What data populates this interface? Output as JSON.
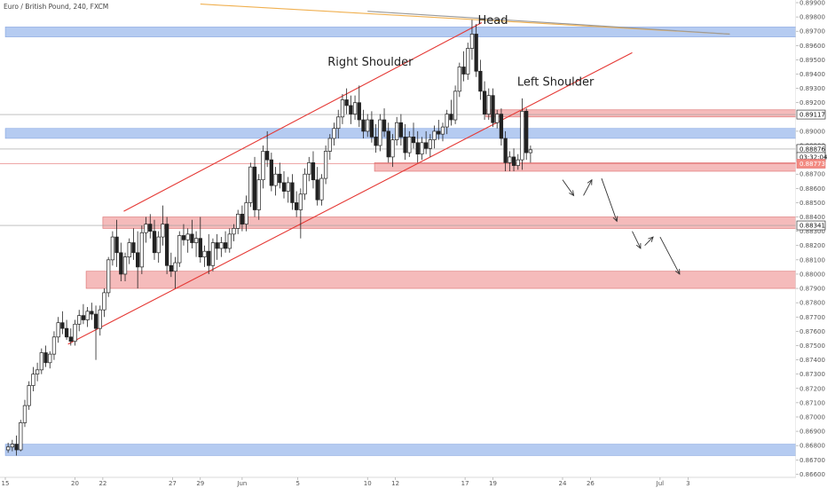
{
  "chart_data": {
    "type": "candlestick",
    "title": "Euro / British Pound, 240, FXCM",
    "y_axis_ticks": [
      "0.89900",
      "0.89800",
      "0.89700",
      "0.89600",
      "0.89500",
      "0.89400",
      "0.89300",
      "0.89200",
      "0.89000",
      "0.88900",
      "0.88700",
      "0.88600",
      "0.88500",
      "0.88400",
      "0.88300",
      "0.88200",
      "0.88100",
      "0.88000",
      "0.87900",
      "0.87800",
      "0.87700",
      "0.87600",
      "0.87500",
      "0.87400",
      "0.87300",
      "0.87200",
      "0.87100",
      "0.87000",
      "0.86900",
      "0.86800",
      "0.86700",
      "0.86600"
    ],
    "ylim": [
      0.8659,
      0.899
    ],
    "x_ticks": [
      {
        "label": "15",
        "day": 0
      },
      {
        "label": "20",
        "day": 5
      },
      {
        "label": "22",
        "day": 7
      },
      {
        "label": "27",
        "day": 12
      },
      {
        "label": "29",
        "day": 14
      },
      {
        "label": "Jun",
        "day": 17
      },
      {
        "label": "5",
        "day": 21
      },
      {
        "label": "10",
        "day": 26
      },
      {
        "label": "12",
        "day": 28
      },
      {
        "label": "17",
        "day": 33
      },
      {
        "label": "19",
        "day": 35
      },
      {
        "label": "24",
        "day": 40
      },
      {
        "label": "26",
        "day": 42
      },
      {
        "label": "Jul",
        "day": 47
      },
      {
        "label": "3",
        "day": 49
      }
    ],
    "price_badges": [
      {
        "label": "0.89117",
        "value": 0.89117,
        "style": "outline"
      },
      {
        "label": "0.88876",
        "value": 0.88876,
        "style": "outline"
      },
      {
        "label": "03:32:04",
        "value": 0.8882,
        "style": "outline"
      },
      {
        "label": "0.88773",
        "value": 0.88773,
        "style": "red"
      },
      {
        "label": "0.88341",
        "value": 0.88341,
        "style": "outline"
      }
    ],
    "zones": [
      {
        "kind": "blue",
        "from_day": 0,
        "y_low": 0.8895,
        "y_high": 0.8902
      },
      {
        "kind": "blue",
        "from_day": 0,
        "y_low": 0.8966,
        "y_high": 0.8973
      },
      {
        "kind": "red",
        "from_day": 34.5,
        "y_low": 0.891,
        "y_high": 0.8915
      },
      {
        "kind": "red",
        "from_day": 26.5,
        "y_low": 0.8872,
        "y_high": 0.8878
      },
      {
        "kind": "red",
        "from_day": 7,
        "y_low": 0.8832,
        "y_high": 0.884
      },
      {
        "kind": "red",
        "from_day": 5.8,
        "y_low": 0.879,
        "y_high": 0.8802
      },
      {
        "kind": "blue",
        "from_day": 0,
        "y_low": 0.8673,
        "y_high": 0.8681
      }
    ],
    "trendlines": [
      {
        "color": "#e53935",
        "from": [
          8.5,
          0.8844
        ],
        "to": [
          34.2,
          0.8976
        ]
      },
      {
        "color": "#e53935",
        "from": [
          4.5,
          0.8751
        ],
        "to": [
          45,
          0.8955
        ]
      },
      {
        "color": "#f0b050",
        "from": [
          14,
          0.8989
        ],
        "to": [
          52,
          0.8968
        ]
      },
      {
        "color": "#999999",
        "from": [
          26,
          0.8984
        ],
        "to": [
          52,
          0.8968
        ]
      }
    ],
    "annotations": [
      {
        "text": "Head",
        "day": 35,
        "value": 0.8975
      },
      {
        "text": "Right Shoulder",
        "day": 26.2,
        "value": 0.8946
      },
      {
        "text": "Left Shoulder",
        "day": 39.5,
        "value": 0.8932
      }
    ],
    "projection_arrows": [
      {
        "from": [
          40,
          0.8866
        ],
        "to": [
          40.8,
          0.8855
        ]
      },
      {
        "from": [
          41.5,
          0.8855
        ],
        "to": [
          42.1,
          0.8866
        ]
      },
      {
        "from": [
          42.8,
          0.8867
        ],
        "to": [
          43.9,
          0.8837
        ]
      },
      {
        "from": [
          45,
          0.883
        ],
        "to": [
          45.6,
          0.8818
        ]
      },
      {
        "from": [
          45.9,
          0.882
        ],
        "to": [
          46.5,
          0.8826
        ]
      },
      {
        "from": [
          47,
          0.8826
        ],
        "to": [
          48.4,
          0.88
        ]
      }
    ],
    "candles": [
      {
        "t": 0.2,
        "o": 0.8677,
        "h": 0.8682,
        "l": 0.8675,
        "c": 0.8679
      },
      {
        "t": 0.5,
        "o": 0.8679,
        "h": 0.8684,
        "l": 0.8676,
        "c": 0.8681
      },
      {
        "t": 0.8,
        "o": 0.8681,
        "h": 0.8687,
        "l": 0.8673,
        "c": 0.8677
      },
      {
        "t": 1.1,
        "o": 0.8677,
        "h": 0.8698,
        "l": 0.8676,
        "c": 0.8696
      },
      {
        "t": 1.4,
        "o": 0.8696,
        "h": 0.8712,
        "l": 0.8693,
        "c": 0.8708
      },
      {
        "t": 1.7,
        "o": 0.8708,
        "h": 0.8725,
        "l": 0.8705,
        "c": 0.8722
      },
      {
        "t": 2.0,
        "o": 0.8722,
        "h": 0.8735,
        "l": 0.8718,
        "c": 0.873
      },
      {
        "t": 2.3,
        "o": 0.873,
        "h": 0.8738,
        "l": 0.8725,
        "c": 0.8733
      },
      {
        "t": 2.6,
        "o": 0.8733,
        "h": 0.8748,
        "l": 0.873,
        "c": 0.8745
      },
      {
        "t": 2.9,
        "o": 0.8745,
        "h": 0.875,
        "l": 0.8735,
        "c": 0.8738
      },
      {
        "t": 3.2,
        "o": 0.8738,
        "h": 0.8746,
        "l": 0.8734,
        "c": 0.8744
      },
      {
        "t": 3.5,
        "o": 0.8744,
        "h": 0.876,
        "l": 0.874,
        "c": 0.8756
      },
      {
        "t": 3.8,
        "o": 0.8756,
        "h": 0.877,
        "l": 0.8752,
        "c": 0.8766
      },
      {
        "t": 4.1,
        "o": 0.8766,
        "h": 0.8774,
        "l": 0.8758,
        "c": 0.8762
      },
      {
        "t": 4.4,
        "o": 0.8762,
        "h": 0.8768,
        "l": 0.8754,
        "c": 0.8756
      },
      {
        "t": 4.7,
        "o": 0.8756,
        "h": 0.8762,
        "l": 0.875,
        "c": 0.8753
      },
      {
        "t": 5.0,
        "o": 0.8753,
        "h": 0.8768,
        "l": 0.875,
        "c": 0.8765
      },
      {
        "t": 5.3,
        "o": 0.8765,
        "h": 0.8775,
        "l": 0.876,
        "c": 0.8771
      },
      {
        "t": 5.6,
        "o": 0.8771,
        "h": 0.8779,
        "l": 0.8765,
        "c": 0.8768
      },
      {
        "t": 5.9,
        "o": 0.8768,
        "h": 0.8777,
        "l": 0.8763,
        "c": 0.8774
      },
      {
        "t": 6.2,
        "o": 0.8774,
        "h": 0.878,
        "l": 0.8768,
        "c": 0.8772
      },
      {
        "t": 6.5,
        "o": 0.8772,
        "h": 0.8778,
        "l": 0.874,
        "c": 0.8762
      },
      {
        "t": 6.8,
        "o": 0.8762,
        "h": 0.8778,
        "l": 0.8757,
        "c": 0.8775
      },
      {
        "t": 7.1,
        "o": 0.8775,
        "h": 0.879,
        "l": 0.877,
        "c": 0.8787
      },
      {
        "t": 7.4,
        "o": 0.8787,
        "h": 0.8812,
        "l": 0.8784,
        "c": 0.881
      },
      {
        "t": 7.7,
        "o": 0.881,
        "h": 0.883,
        "l": 0.8806,
        "c": 0.8826
      },
      {
        "t": 8.0,
        "o": 0.8826,
        "h": 0.8838,
        "l": 0.8805,
        "c": 0.8815
      },
      {
        "t": 8.3,
        "o": 0.8815,
        "h": 0.8822,
        "l": 0.8795,
        "c": 0.88
      },
      {
        "t": 8.6,
        "o": 0.88,
        "h": 0.8815,
        "l": 0.8795,
        "c": 0.8812
      },
      {
        "t": 8.9,
        "o": 0.8812,
        "h": 0.8825,
        "l": 0.8807,
        "c": 0.8822
      },
      {
        "t": 9.2,
        "o": 0.8822,
        "h": 0.8832,
        "l": 0.881,
        "c": 0.8815
      },
      {
        "t": 9.5,
        "o": 0.8815,
        "h": 0.883,
        "l": 0.879,
        "c": 0.8805
      },
      {
        "t": 9.8,
        "o": 0.8805,
        "h": 0.8834,
        "l": 0.88,
        "c": 0.8829
      },
      {
        "t": 10.1,
        "o": 0.8829,
        "h": 0.884,
        "l": 0.8822,
        "c": 0.8835
      },
      {
        "t": 10.4,
        "o": 0.8835,
        "h": 0.8842,
        "l": 0.8825,
        "c": 0.883
      },
      {
        "t": 10.7,
        "o": 0.883,
        "h": 0.8838,
        "l": 0.881,
        "c": 0.8815
      },
      {
        "t": 11.0,
        "o": 0.8815,
        "h": 0.883,
        "l": 0.8808,
        "c": 0.8826
      },
      {
        "t": 11.3,
        "o": 0.8826,
        "h": 0.8848,
        "l": 0.882,
        "c": 0.8835
      },
      {
        "t": 11.6,
        "o": 0.8835,
        "h": 0.884,
        "l": 0.88,
        "c": 0.8806
      },
      {
        "t": 11.9,
        "o": 0.8806,
        "h": 0.8815,
        "l": 0.8798,
        "c": 0.8802
      },
      {
        "t": 12.2,
        "o": 0.8802,
        "h": 0.8812,
        "l": 0.879,
        "c": 0.8808
      },
      {
        "t": 12.5,
        "o": 0.8808,
        "h": 0.883,
        "l": 0.8805,
        "c": 0.8827
      },
      {
        "t": 12.8,
        "o": 0.8827,
        "h": 0.8835,
        "l": 0.882,
        "c": 0.8824
      },
      {
        "t": 13.1,
        "o": 0.8824,
        "h": 0.8832,
        "l": 0.8815,
        "c": 0.8828
      },
      {
        "t": 13.4,
        "o": 0.8828,
        "h": 0.8838,
        "l": 0.8818,
        "c": 0.8822
      },
      {
        "t": 13.7,
        "o": 0.8822,
        "h": 0.883,
        "l": 0.8812,
        "c": 0.8825
      },
      {
        "t": 14.0,
        "o": 0.8825,
        "h": 0.884,
        "l": 0.8808,
        "c": 0.8812
      },
      {
        "t": 14.3,
        "o": 0.8812,
        "h": 0.882,
        "l": 0.8805,
        "c": 0.8816
      },
      {
        "t": 14.6,
        "o": 0.8816,
        "h": 0.8828,
        "l": 0.88,
        "c": 0.8806
      },
      {
        "t": 14.9,
        "o": 0.8806,
        "h": 0.8825,
        "l": 0.8802,
        "c": 0.8822
      },
      {
        "t": 15.2,
        "o": 0.8822,
        "h": 0.8828,
        "l": 0.881,
        "c": 0.8818
      },
      {
        "t": 15.5,
        "o": 0.8818,
        "h": 0.8826,
        "l": 0.8812,
        "c": 0.8822
      },
      {
        "t": 15.8,
        "o": 0.8822,
        "h": 0.883,
        "l": 0.8815,
        "c": 0.8818
      },
      {
        "t": 16.1,
        "o": 0.8818,
        "h": 0.8832,
        "l": 0.8815,
        "c": 0.8828
      },
      {
        "t": 16.4,
        "o": 0.8828,
        "h": 0.8835,
        "l": 0.8823,
        "c": 0.8832
      },
      {
        "t": 16.7,
        "o": 0.8832,
        "h": 0.8845,
        "l": 0.8828,
        "c": 0.8842
      },
      {
        "t": 17.0,
        "o": 0.8842,
        "h": 0.8848,
        "l": 0.883,
        "c": 0.8835
      },
      {
        "t": 17.3,
        "o": 0.8835,
        "h": 0.8855,
        "l": 0.883,
        "c": 0.885
      },
      {
        "t": 17.6,
        "o": 0.885,
        "h": 0.8878,
        "l": 0.8847,
        "c": 0.8875
      },
      {
        "t": 17.9,
        "o": 0.8875,
        "h": 0.8882,
        "l": 0.884,
        "c": 0.8845
      },
      {
        "t": 18.2,
        "o": 0.8845,
        "h": 0.887,
        "l": 0.8838,
        "c": 0.8866
      },
      {
        "t": 18.5,
        "o": 0.8866,
        "h": 0.889,
        "l": 0.886,
        "c": 0.8886
      },
      {
        "t": 18.8,
        "o": 0.8886,
        "h": 0.89,
        "l": 0.8875,
        "c": 0.888
      },
      {
        "t": 19.1,
        "o": 0.888,
        "h": 0.8885,
        "l": 0.8858,
        "c": 0.8862
      },
      {
        "t": 19.4,
        "o": 0.8862,
        "h": 0.8875,
        "l": 0.8855,
        "c": 0.887
      },
      {
        "t": 19.7,
        "o": 0.887,
        "h": 0.8878,
        "l": 0.886,
        "c": 0.8864
      },
      {
        "t": 20.0,
        "o": 0.8864,
        "h": 0.8872,
        "l": 0.8853,
        "c": 0.8858
      },
      {
        "t": 20.3,
        "o": 0.8858,
        "h": 0.8868,
        "l": 0.885,
        "c": 0.8864
      },
      {
        "t": 20.6,
        "o": 0.8864,
        "h": 0.887,
        "l": 0.8845,
        "c": 0.885
      },
      {
        "t": 20.9,
        "o": 0.885,
        "h": 0.8858,
        "l": 0.884,
        "c": 0.8845
      },
      {
        "t": 21.2,
        "o": 0.8845,
        "h": 0.886,
        "l": 0.8825,
        "c": 0.8856
      },
      {
        "t": 21.5,
        "o": 0.8856,
        "h": 0.8874,
        "l": 0.8852,
        "c": 0.887
      },
      {
        "t": 21.8,
        "o": 0.887,
        "h": 0.8882,
        "l": 0.8865,
        "c": 0.8878
      },
      {
        "t": 22.1,
        "o": 0.8878,
        "h": 0.8886,
        "l": 0.886,
        "c": 0.8866
      },
      {
        "t": 22.4,
        "o": 0.8866,
        "h": 0.8875,
        "l": 0.8848,
        "c": 0.8852
      },
      {
        "t": 22.7,
        "o": 0.8852,
        "h": 0.887,
        "l": 0.8848,
        "c": 0.8867
      },
      {
        "t": 23.0,
        "o": 0.8867,
        "h": 0.889,
        "l": 0.8863,
        "c": 0.8886
      },
      {
        "t": 23.3,
        "o": 0.8886,
        "h": 0.8898,
        "l": 0.888,
        "c": 0.8895
      },
      {
        "t": 23.6,
        "o": 0.8895,
        "h": 0.8906,
        "l": 0.889,
        "c": 0.8902
      },
      {
        "t": 23.9,
        "o": 0.8902,
        "h": 0.8915,
        "l": 0.8895,
        "c": 0.891
      },
      {
        "t": 24.2,
        "o": 0.891,
        "h": 0.8926,
        "l": 0.8905,
        "c": 0.8922
      },
      {
        "t": 24.5,
        "o": 0.8922,
        "h": 0.893,
        "l": 0.8912,
        "c": 0.8918
      },
      {
        "t": 24.8,
        "o": 0.8918,
        "h": 0.8925,
        "l": 0.8905,
        "c": 0.8912
      },
      {
        "t": 25.1,
        "o": 0.8912,
        "h": 0.8925,
        "l": 0.8908,
        "c": 0.892
      },
      {
        "t": 25.4,
        "o": 0.892,
        "h": 0.8932,
        "l": 0.8903,
        "c": 0.8908
      },
      {
        "t": 25.7,
        "o": 0.8908,
        "h": 0.8915,
        "l": 0.8895,
        "c": 0.89
      },
      {
        "t": 26.0,
        "o": 0.89,
        "h": 0.8912,
        "l": 0.8896,
        "c": 0.8908
      },
      {
        "t": 26.3,
        "o": 0.8908,
        "h": 0.8914,
        "l": 0.8892,
        "c": 0.8896
      },
      {
        "t": 26.6,
        "o": 0.8896,
        "h": 0.8905,
        "l": 0.8885,
        "c": 0.889
      },
      {
        "t": 26.9,
        "o": 0.889,
        "h": 0.8912,
        "l": 0.8886,
        "c": 0.8908
      },
      {
        "t": 27.2,
        "o": 0.8908,
        "h": 0.8916,
        "l": 0.8896,
        "c": 0.89
      },
      {
        "t": 27.5,
        "o": 0.89,
        "h": 0.8906,
        "l": 0.8878,
        "c": 0.8882
      },
      {
        "t": 27.8,
        "o": 0.8882,
        "h": 0.8898,
        "l": 0.8875,
        "c": 0.8894
      },
      {
        "t": 28.1,
        "o": 0.8894,
        "h": 0.891,
        "l": 0.889,
        "c": 0.8906
      },
      {
        "t": 28.4,
        "o": 0.8906,
        "h": 0.8912,
        "l": 0.889,
        "c": 0.8896
      },
      {
        "t": 28.7,
        "o": 0.8896,
        "h": 0.8905,
        "l": 0.888,
        "c": 0.8885
      },
      {
        "t": 29.0,
        "o": 0.8885,
        "h": 0.89,
        "l": 0.8882,
        "c": 0.8896
      },
      {
        "t": 29.3,
        "o": 0.8896,
        "h": 0.8906,
        "l": 0.8888,
        "c": 0.8892
      },
      {
        "t": 29.6,
        "o": 0.8892,
        "h": 0.89,
        "l": 0.8878,
        "c": 0.8884
      },
      {
        "t": 29.9,
        "o": 0.8884,
        "h": 0.8896,
        "l": 0.888,
        "c": 0.8892
      },
      {
        "t": 30.2,
        "o": 0.8892,
        "h": 0.89,
        "l": 0.8884,
        "c": 0.8888
      },
      {
        "t": 30.5,
        "o": 0.8888,
        "h": 0.8898,
        "l": 0.8882,
        "c": 0.8894
      },
      {
        "t": 30.8,
        "o": 0.8894,
        "h": 0.8904,
        "l": 0.8888,
        "c": 0.89
      },
      {
        "t": 31.1,
        "o": 0.89,
        "h": 0.8908,
        "l": 0.8894,
        "c": 0.8898
      },
      {
        "t": 31.4,
        "o": 0.8898,
        "h": 0.8906,
        "l": 0.8893,
        "c": 0.8903
      },
      {
        "t": 31.7,
        "o": 0.8903,
        "h": 0.8915,
        "l": 0.8898,
        "c": 0.8912
      },
      {
        "t": 32.0,
        "o": 0.8912,
        "h": 0.8922,
        "l": 0.8904,
        "c": 0.8908
      },
      {
        "t": 32.3,
        "o": 0.8908,
        "h": 0.8932,
        "l": 0.8905,
        "c": 0.8928
      },
      {
        "t": 32.6,
        "o": 0.8928,
        "h": 0.8948,
        "l": 0.8924,
        "c": 0.8945
      },
      {
        "t": 32.9,
        "o": 0.8945,
        "h": 0.8956,
        "l": 0.8935,
        "c": 0.894
      },
      {
        "t": 33.2,
        "o": 0.894,
        "h": 0.8962,
        "l": 0.8936,
        "c": 0.8958
      },
      {
        "t": 33.5,
        "o": 0.8958,
        "h": 0.8978,
        "l": 0.895,
        "c": 0.8968
      },
      {
        "t": 33.8,
        "o": 0.8968,
        "h": 0.8975,
        "l": 0.8938,
        "c": 0.8942
      },
      {
        "t": 34.1,
        "o": 0.8942,
        "h": 0.895,
        "l": 0.8922,
        "c": 0.8928
      },
      {
        "t": 34.4,
        "o": 0.8928,
        "h": 0.8935,
        "l": 0.8908,
        "c": 0.8912
      },
      {
        "t": 34.7,
        "o": 0.8912,
        "h": 0.893,
        "l": 0.8908,
        "c": 0.8925
      },
      {
        "t": 35.0,
        "o": 0.8925,
        "h": 0.893,
        "l": 0.8903,
        "c": 0.8906
      },
      {
        "t": 35.3,
        "o": 0.8906,
        "h": 0.8915,
        "l": 0.8902,
        "c": 0.8912
      },
      {
        "t": 35.6,
        "o": 0.8912,
        "h": 0.8916,
        "l": 0.889,
        "c": 0.8895
      },
      {
        "t": 35.9,
        "o": 0.8895,
        "h": 0.89,
        "l": 0.8872,
        "c": 0.8878
      },
      {
        "t": 36.2,
        "o": 0.8878,
        "h": 0.8886,
        "l": 0.8872,
        "c": 0.8882
      },
      {
        "t": 36.5,
        "o": 0.8882,
        "h": 0.8888,
        "l": 0.8872,
        "c": 0.8876
      },
      {
        "t": 36.8,
        "o": 0.8876,
        "h": 0.8884,
        "l": 0.8873,
        "c": 0.888
      },
      {
        "t": 37.1,
        "o": 0.888,
        "h": 0.8923,
        "l": 0.8873,
        "c": 0.8914
      },
      {
        "t": 37.4,
        "o": 0.8914,
        "h": 0.8916,
        "l": 0.888,
        "c": 0.8885
      },
      {
        "t": 37.7,
        "o": 0.8885,
        "h": 0.889,
        "l": 0.8878,
        "c": 0.8887
      }
    ]
  }
}
